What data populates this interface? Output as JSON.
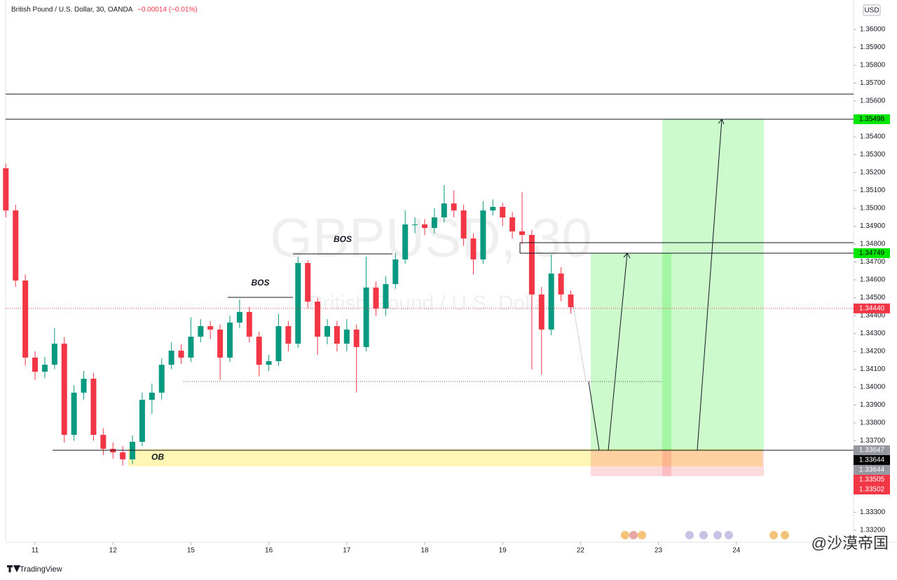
{
  "chart_data": {
    "type": "candlestick",
    "title": "British Pound / U.S. Dollar, 30, OANDA",
    "change": "−0.00014 (−0.01%)",
    "currency": "USD",
    "watermark": "GBPUSD, 30",
    "watermark_subtitle": "British Pound / U.S. Dollar",
    "brand": "TradingView",
    "credit": "@沙漠帝国",
    "up_color": "#089981",
    "down_color": "#f23645",
    "x": [
      -0.375,
      -0.25,
      -0.125,
      0,
      0.125,
      0.25,
      0.375,
      0.5,
      0.625,
      0.75,
      0.875,
      1,
      1.125,
      1.25,
      1.375,
      1.5,
      1.625,
      1.75,
      1.875,
      2,
      2.125,
      2.25,
      2.375,
      2.5,
      2.625,
      2.75,
      2.875,
      3,
      3.125,
      3.25,
      3.375,
      3.5,
      3.625,
      3.75,
      3.875,
      4,
      4.125,
      4.25,
      4.375,
      4.5,
      4.625,
      4.75,
      4.875,
      5,
      5.125,
      5.25,
      5.375,
      5.5,
      5.625,
      5.75,
      5.875,
      6,
      6.125,
      6.25,
      6.375,
      6.5,
      6.625,
      6.75,
      6.875
    ],
    "open": [
      1.35224,
      1.34988,
      1.34596,
      1.34165,
      1.34086,
      1.34125,
      1.34243,
      1.33733,
      1.33969,
      1.34047,
      1.33733,
      1.33655,
      1.33635,
      1.33596,
      1.33694,
      1.33929,
      1.33969,
      1.34125,
      1.34204,
      1.34165,
      1.34282,
      1.34341,
      1.34322,
      1.34165,
      1.34361,
      1.3442,
      1.34282,
      1.34125,
      1.34145,
      1.34341,
      1.34243,
      1.34694,
      1.34478,
      1.34282,
      1.34341,
      1.34243,
      1.34322,
      1.34224,
      1.34557,
      1.34439,
      1.34576,
      1.34714,
      1.3491,
      1.3491,
      1.3489,
      1.34949,
      1.35027,
      1.34988,
      1.34831,
      1.34714,
      1.34988,
      1.35008,
      1.34949,
      1.34871,
      1.34851,
      1.34518,
      1.34322,
      1.34635,
      1.34518
    ],
    "high": [
      1.3525,
      1.3502,
      1.3463,
      1.342,
      1.3417,
      1.3433,
      1.3428,
      1.3401,
      1.3409,
      1.3408,
      1.3377,
      1.3369,
      1.3367,
      1.3373,
      1.3397,
      1.3402,
      1.3416,
      1.3425,
      1.3424,
      1.3439,
      1.3438,
      1.3437,
      1.3435,
      1.344,
      1.3449,
      1.3445,
      1.3431,
      1.3418,
      1.3441,
      1.3437,
      1.3473,
      1.3471,
      1.345,
      1.3438,
      1.3437,
      1.3438,
      1.3435,
      1.3473,
      1.3459,
      1.3462,
      1.3475,
      1.3499,
      1.3495,
      1.3494,
      1.35,
      1.3513,
      1.351,
      1.3502,
      1.3486,
      1.3504,
      1.3505,
      1.3503,
      1.3498,
      1.3509,
      1.3488,
      1.3456,
      1.3474,
      1.3467,
      1.3454
    ],
    "low": [
      1.3495,
      1.3456,
      1.3412,
      1.3404,
      1.3405,
      1.341,
      1.3369,
      1.337,
      1.3393,
      1.337,
      1.3362,
      1.336,
      1.3356,
      1.3357,
      1.3367,
      1.3385,
      1.3393,
      1.341,
      1.3413,
      1.3414,
      1.3425,
      1.3427,
      1.3404,
      1.3414,
      1.3433,
      1.3425,
      1.3406,
      1.3409,
      1.3412,
      1.342,
      1.3422,
      1.3444,
      1.3418,
      1.3424,
      1.342,
      1.342,
      1.3397,
      1.342,
      1.344,
      1.344,
      1.3455,
      1.3469,
      1.3486,
      1.3485,
      1.3486,
      1.3492,
      1.3495,
      1.3479,
      1.3463,
      1.3469,
      1.3496,
      1.349,
      1.3483,
      1.348,
      1.341,
      1.3407,
      1.3429,
      1.3448,
      1.3441
    ],
    "close": [
      1.34988,
      1.34596,
      1.34165,
      1.34086,
      1.34125,
      1.34243,
      1.33733,
      1.33969,
      1.34047,
      1.33733,
      1.33655,
      1.33635,
      1.33596,
      1.33694,
      1.33929,
      1.33969,
      1.34125,
      1.34204,
      1.34165,
      1.34282,
      1.34341,
      1.34322,
      1.34165,
      1.34361,
      1.3442,
      1.34282,
      1.34125,
      1.34145,
      1.34341,
      1.34243,
      1.34694,
      1.34478,
      1.34282,
      1.34341,
      1.34243,
      1.34322,
      1.34224,
      1.34557,
      1.34439,
      1.34576,
      1.34714,
      1.3491,
      1.3491,
      1.3489,
      1.34949,
      1.35027,
      1.34988,
      1.34831,
      1.34714,
      1.34988,
      1.35008,
      1.34949,
      1.34871,
      1.34851,
      1.34518,
      1.34322,
      1.34635,
      1.34518,
      1.34447
    ],
    "xlim": [
      -0.378,
      10.504
    ],
    "xticks": [
      {
        "value": 0,
        "label": "11"
      },
      {
        "value": 1,
        "label": "12"
      },
      {
        "value": 2,
        "label": "15"
      },
      {
        "value": 3,
        "label": "16"
      },
      {
        "value": 4,
        "label": "17"
      },
      {
        "value": 5,
        "label": "18"
      },
      {
        "value": 6,
        "label": "19"
      },
      {
        "value": 7,
        "label": "22"
      },
      {
        "value": 8,
        "label": "23"
      },
      {
        "value": 9,
        "label": "24"
      }
    ],
    "ylim": [
      1.33133,
      1.36165
    ],
    "yticks": [
      {
        "value": 1.36,
        "label": "1.36000"
      },
      {
        "value": 1.359,
        "label": "1.35900"
      },
      {
        "value": 1.358,
        "label": "1.35800"
      },
      {
        "value": 1.357,
        "label": "1.35700"
      },
      {
        "value": 1.356,
        "label": "1.35600"
      },
      {
        "value": 1.354,
        "label": "1.35400"
      },
      {
        "value": 1.353,
        "label": "1.35300"
      },
      {
        "value": 1.352,
        "label": "1.35200"
      },
      {
        "value": 1.351,
        "label": "1.35100"
      },
      {
        "value": 1.35,
        "label": "1.35000"
      },
      {
        "value": 1.349,
        "label": "1.34900"
      },
      {
        "value": 1.348,
        "label": "1.34800"
      },
      {
        "value": 1.347,
        "label": "1.34700"
      },
      {
        "value": 1.346,
        "label": "1.34600"
      },
      {
        "value": 1.345,
        "label": "1.34500"
      },
      {
        "value": 1.344,
        "label": "1.34400"
      },
      {
        "value": 1.343,
        "label": "1.34300"
      },
      {
        "value": 1.342,
        "label": "1.34200"
      },
      {
        "value": 1.341,
        "label": "1.34100"
      },
      {
        "value": 1.34,
        "label": "1.34000"
      },
      {
        "value": 1.339,
        "label": "1.33900"
      },
      {
        "value": 1.338,
        "label": "1.33800"
      },
      {
        "value": 1.337,
        "label": "1.33700"
      },
      {
        "value": 1.333,
        "label": "1.33300"
      },
      {
        "value": 1.332,
        "label": "1.33200"
      }
    ],
    "price_labels": [
      {
        "price": 1.35498,
        "color": "#00e600",
        "text_color": "#000000"
      },
      {
        "price": 1.34749,
        "color": "#00e600",
        "text_color": "#000000"
      },
      {
        "price": {
          "value": 1.3444,
          "label": "1.34440"
        },
        "color": "#f23645",
        "text_color": "#ffffff"
      },
      {
        "price": 1.33647,
        "color": "#9598a1",
        "text_color": "#ffffff"
      },
      {
        "price": 1.33644,
        "color": "#000000",
        "text_color": "#ffffff"
      },
      {
        "price": 1.33644,
        "color": "#9598a1",
        "text_color": "#ffffff"
      },
      {
        "price": 1.33505,
        "color": "#f23645",
        "text_color": "#ffffff"
      },
      {
        "price": 1.33502,
        "color": "#f23645",
        "text_color": "#ffffff"
      }
    ],
    "lines": [
      1.35639,
      1.34808
    ],
    "dotted_level": 1.34031,
    "bos": [
      {
        "label": "BOS",
        "price": 1.34502
      },
      {
        "label": "BOS",
        "price": 1.34745
      }
    ],
    "ob": {
      "label": "OB",
      "top": 1.33655,
      "bottom": 1.33557
    }
  }
}
